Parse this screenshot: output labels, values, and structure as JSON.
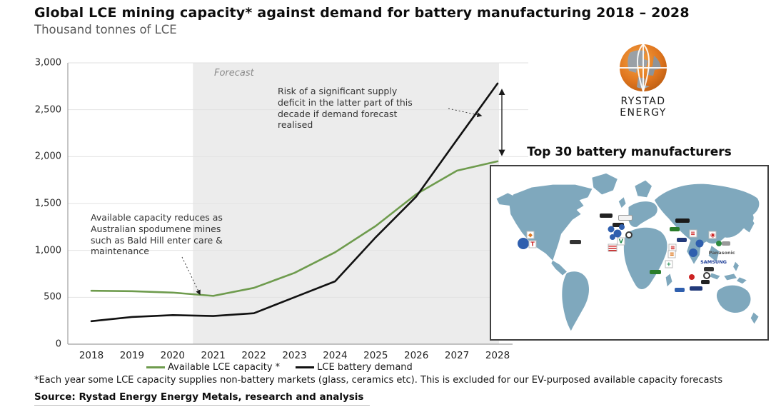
{
  "page": {
    "title": "Global LCE mining capacity* against demand for battery manufacturing 2018 – 2028",
    "subtitle": "Thousand tonnes of LCE",
    "footnote": "*Each year some LCE capacity supplies non-battery markets (glass, ceramics etc). This is excluded for our EV-purposed available capacity forecasts",
    "source": "Source: Rystad Energy Energy Metals, research and analysis"
  },
  "logo": {
    "text": "RYSTAD ENERGY",
    "orange": "#e0761f",
    "gray": "#9aa0a6"
  },
  "chart_data": {
    "type": "line",
    "title": "Global LCE mining capacity* against demand for battery manufacturing 2018 – 2028",
    "ylabel": "Thousand tonnes of LCE",
    "x": [
      2018,
      2019,
      2020,
      2021,
      2022,
      2023,
      2024,
      2025,
      2026,
      2027,
      2028
    ],
    "ylim": [
      0,
      3000
    ],
    "yticks": [
      0,
      500,
      1000,
      1500,
      2000,
      2500,
      3000
    ],
    "ytick_labels": [
      "0",
      "500",
      "1,000",
      "1,500",
      "2,000",
      "2,500",
      "3,000"
    ],
    "grid": true,
    "legend_position": "bottom",
    "series": [
      {
        "name": "Available LCE capacity *",
        "color": "#6e9b4d",
        "values": [
          570,
          565,
          550,
          515,
          600,
          760,
          980,
          1260,
          1600,
          1850,
          1950
        ]
      },
      {
        "name": "LCE battery demand",
        "color": "#111111",
        "values": [
          245,
          290,
          310,
          300,
          330,
          500,
          670,
          1140,
          1575,
          2180,
          2780
        ]
      }
    ],
    "forecast": {
      "label": "Forecast",
      "start_x": 2020.5,
      "fill": "#ececec"
    },
    "annotations": [
      {
        "id": "capacity",
        "text": "Available capacity reduces as Australian spodumene mines such as Bald Hill enter care & maintenance"
      },
      {
        "id": "risk",
        "text": "Risk of a significant supply deficit in the latter part of this decade if demand forecast realised"
      }
    ],
    "supply_gap_arrow": {
      "year": 2028,
      "from_value": 1950,
      "to_value": 2780
    }
  },
  "map": {
    "title": "Top 30 battery manufacturers",
    "land_color": "#7fa8bd",
    "labels": [
      {
        "text": "SAMSUNG",
        "color": "#1f3f99"
      },
      {
        "text": "Panasonic",
        "color": "#555555"
      }
    ],
    "markers": [
      {
        "kind": "dot",
        "x": 11.5,
        "y": 44.5,
        "c": "#2f5fae",
        "s": 16
      },
      {
        "kind": "box",
        "x": 15.0,
        "y": 45.0,
        "c": "#cc2222",
        "g": "T"
      },
      {
        "kind": "box",
        "x": 14.2,
        "y": 39.5,
        "c": "#e07820",
        "g": "◆"
      },
      {
        "kind": "pill",
        "x": 30.5,
        "y": 43.8,
        "c": "#333333",
        "w": 16
      },
      {
        "kind": "pill",
        "x": 41.5,
        "y": 28.5,
        "c": "#222222",
        "w": 18
      },
      {
        "kind": "pill",
        "x": 48.6,
        "y": 29.6,
        "c": "#f2f2f2",
        "w": 18,
        "b": 1
      },
      {
        "kind": "pill",
        "x": 46.0,
        "y": 33.8,
        "c": "#222222",
        "w": 16
      },
      {
        "kind": "dot",
        "x": 43.5,
        "y": 36.5,
        "c": "#2f5fae",
        "s": 9
      },
      {
        "kind": "dot",
        "x": 45.8,
        "y": 38.8,
        "c": "#2f5fae",
        "s": 11
      },
      {
        "kind": "dot",
        "x": 44.0,
        "y": 41.0,
        "c": "#2f5fae",
        "s": 8
      },
      {
        "kind": "dot",
        "x": 47.3,
        "y": 35.3,
        "c": "#2f5fae",
        "s": 8
      },
      {
        "kind": "ring",
        "x": 49.8,
        "y": 39.8
      },
      {
        "kind": "box",
        "x": 47.0,
        "y": 43.3,
        "c": "#1d8a4b",
        "g": "V"
      },
      {
        "kind": "flag",
        "x": 43.9,
        "y": 47.0
      },
      {
        "kind": "pill",
        "x": 69.3,
        "y": 31.3,
        "c": "#1a1a1a",
        "w": 20
      },
      {
        "kind": "pill",
        "x": 66.5,
        "y": 36.3,
        "c": "#2a7d2a",
        "w": 14
      },
      {
        "kind": "box",
        "x": 73.0,
        "y": 39.0,
        "c": "#cc2222",
        "g": "≡"
      },
      {
        "kind": "pill",
        "x": 69.0,
        "y": 42.5,
        "c": "#223a7a",
        "w": 14
      },
      {
        "kind": "box",
        "x": 65.7,
        "y": 47.0,
        "c": "#cc2222",
        "g": "≡"
      },
      {
        "kind": "box",
        "x": 65.4,
        "y": 51.0,
        "c": "#d96600",
        "g": "≡"
      },
      {
        "kind": "box",
        "x": 80.2,
        "y": 39.8,
        "c": "#cc2222",
        "g": "◉"
      },
      {
        "kind": "dot",
        "x": 82.3,
        "y": 44.5,
        "c": "#2d8a3e",
        "s": 8
      },
      {
        "kind": "pill",
        "x": 85.0,
        "y": 44.8,
        "c": "#999999",
        "w": 12
      },
      {
        "kind": "dot",
        "x": 75.4,
        "y": 44.5,
        "c": "#2f5fae",
        "s": 11
      },
      {
        "kind": "dot",
        "x": 73.2,
        "y": 50.0,
        "c": "#2f5fae",
        "s": 12
      },
      {
        "kind": "label",
        "x": 83.5,
        "y": 49.8,
        "t": "Panasonic",
        "c": "#555555"
      },
      {
        "kind": "label",
        "x": 80.5,
        "y": 55.3,
        "t": "SAMSUNG",
        "c": "#1f3f99"
      },
      {
        "kind": "pill",
        "x": 78.8,
        "y": 59.3,
        "c": "#333333",
        "w": 14
      },
      {
        "kind": "ring",
        "x": 78.0,
        "y": 63.2
      },
      {
        "kind": "pill",
        "x": 77.5,
        "y": 66.8,
        "c": "#222222",
        "w": 12
      },
      {
        "kind": "box",
        "x": 64.3,
        "y": 56.6,
        "c": "#1d8a4b",
        "g": "+"
      },
      {
        "kind": "pill",
        "x": 59.5,
        "y": 61.3,
        "c": "#2a7d2a",
        "w": 16
      },
      {
        "kind": "dot",
        "x": 72.5,
        "y": 64.0,
        "c": "#cc2222",
        "s": 8
      },
      {
        "kind": "pill",
        "x": 68.3,
        "y": 71.3,
        "c": "#2f5fae",
        "w": 14
      },
      {
        "kind": "pill",
        "x": 74.2,
        "y": 70.8,
        "c": "#223a7a",
        "w": 18
      }
    ]
  }
}
